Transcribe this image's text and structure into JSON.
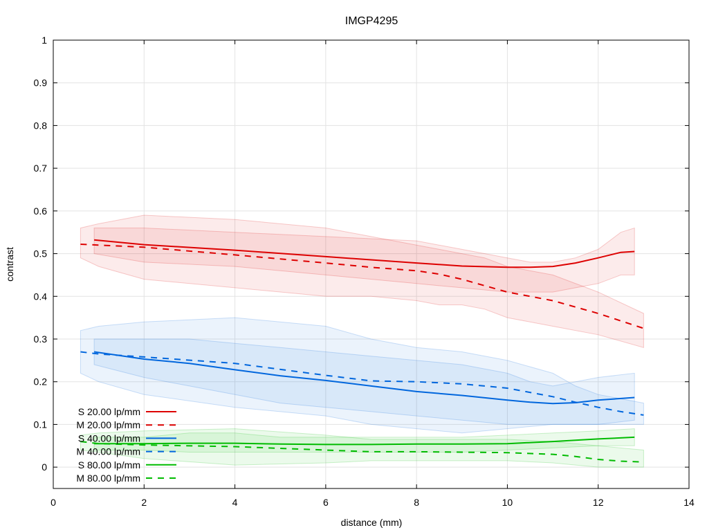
{
  "chart_data": {
    "type": "line",
    "title": "IMGP4295",
    "xlabel": "distance (mm)",
    "ylabel": "contrast",
    "xlim": [
      0,
      14
    ],
    "ylim": [
      -0.05,
      1
    ],
    "x_ticks": [
      "0",
      "2",
      "4",
      "6",
      "8",
      "10",
      "12",
      "14"
    ],
    "y_ticks": [
      "0",
      "0.1",
      "0.2",
      "0.3",
      "0.4",
      "0.5",
      "0.6",
      "0.7",
      "0.8",
      "0.9",
      "1"
    ],
    "grid": true,
    "legend_position": "bottom-left",
    "series": [
      {
        "name": "S 20.00 lp/mm",
        "color": "#dd0000",
        "dash": "solid",
        "x": [
          0.9,
          2,
          4,
          6,
          8,
          9,
          10,
          10.5,
          11,
          11.5,
          12,
          12.5,
          12.8
        ],
        "values": [
          0.532,
          0.521,
          0.508,
          0.493,
          0.478,
          0.471,
          0.468,
          0.468,
          0.47,
          0.478,
          0.49,
          0.503,
          0.505
        ],
        "band_upper": [
          0.56,
          0.56,
          0.55,
          0.54,
          0.53,
          0.51,
          0.49,
          0.48,
          0.48,
          0.49,
          0.51,
          0.55,
          0.56
        ],
        "band_lower": [
          0.5,
          0.48,
          0.47,
          0.45,
          0.43,
          0.42,
          0.41,
          0.41,
          0.41,
          0.42,
          0.43,
          0.45,
          0.45
        ]
      },
      {
        "name": "M 20.00 lp/mm",
        "color": "#dd0000",
        "dash": "dashed",
        "x": [
          0.6,
          1,
          2,
          4,
          6,
          7,
          8,
          8.5,
          9,
          9.5,
          10,
          11,
          12,
          13
        ],
        "values": [
          0.522,
          0.52,
          0.515,
          0.497,
          0.478,
          0.468,
          0.46,
          0.452,
          0.44,
          0.425,
          0.41,
          0.39,
          0.36,
          0.325
        ],
        "band_upper": [
          0.56,
          0.57,
          0.59,
          0.58,
          0.56,
          0.54,
          0.52,
          0.51,
          0.5,
          0.49,
          0.47,
          0.45,
          0.41,
          0.36
        ],
        "band_lower": [
          0.49,
          0.47,
          0.44,
          0.42,
          0.4,
          0.4,
          0.39,
          0.38,
          0.38,
          0.37,
          0.35,
          0.33,
          0.31,
          0.28
        ]
      },
      {
        "name": "S 40.00 lp/mm",
        "color": "#0066dd",
        "dash": "solid",
        "x": [
          0.9,
          2,
          3,
          4,
          5,
          6,
          7,
          8,
          9,
          10,
          10.5,
          11,
          11.5,
          12,
          12.8
        ],
        "values": [
          0.27,
          0.253,
          0.243,
          0.228,
          0.214,
          0.203,
          0.19,
          0.177,
          0.168,
          0.157,
          0.152,
          0.149,
          0.151,
          0.157,
          0.163
        ],
        "band_upper": [
          0.3,
          0.3,
          0.3,
          0.29,
          0.28,
          0.27,
          0.26,
          0.25,
          0.24,
          0.22,
          0.2,
          0.19,
          0.2,
          0.21,
          0.22
        ],
        "band_lower": [
          0.24,
          0.21,
          0.19,
          0.17,
          0.15,
          0.14,
          0.13,
          0.12,
          0.11,
          0.1,
          0.1,
          0.1,
          0.1,
          0.1,
          0.11
        ]
      },
      {
        "name": "M 40.00 lp/mm",
        "color": "#0066dd",
        "dash": "dashed",
        "x": [
          0.6,
          1,
          2,
          4,
          6,
          7,
          8,
          9,
          10,
          11,
          11.5,
          12,
          12.5,
          13
        ],
        "values": [
          0.27,
          0.265,
          0.258,
          0.243,
          0.215,
          0.202,
          0.2,
          0.195,
          0.185,
          0.165,
          0.152,
          0.14,
          0.13,
          0.122
        ],
        "band_upper": [
          0.32,
          0.33,
          0.34,
          0.35,
          0.33,
          0.3,
          0.28,
          0.27,
          0.25,
          0.22,
          0.19,
          0.17,
          0.16,
          0.15
        ],
        "band_lower": [
          0.22,
          0.2,
          0.17,
          0.14,
          0.12,
          0.1,
          0.09,
          0.08,
          0.09,
          0.1,
          0.1,
          0.1,
          0.1,
          0.1
        ]
      },
      {
        "name": "S 80.00 lp/mm",
        "color": "#00bb00",
        "dash": "solid",
        "x": [
          0.9,
          2,
          3,
          4,
          5,
          6,
          7,
          8,
          9,
          10,
          11,
          12,
          12.8
        ],
        "values": [
          0.055,
          0.055,
          0.056,
          0.056,
          0.054,
          0.053,
          0.053,
          0.054,
          0.054,
          0.055,
          0.06,
          0.066,
          0.07
        ],
        "band_upper": [
          0.07,
          0.07,
          0.08,
          0.08,
          0.07,
          0.07,
          0.07,
          0.07,
          0.07,
          0.075,
          0.08,
          0.085,
          0.09
        ],
        "band_lower": [
          0.04,
          0.04,
          0.035,
          0.035,
          0.035,
          0.035,
          0.035,
          0.035,
          0.035,
          0.04,
          0.045,
          0.05,
          0.05
        ]
      },
      {
        "name": "M 80.00 lp/mm",
        "color": "#00bb00",
        "dash": "dashed",
        "x": [
          0.6,
          1,
          2,
          4,
          6,
          7,
          8,
          9,
          10,
          11,
          11.5,
          12,
          12.5,
          13
        ],
        "values": [
          0.06,
          0.055,
          0.052,
          0.048,
          0.04,
          0.036,
          0.036,
          0.035,
          0.034,
          0.03,
          0.025,
          0.018,
          0.014,
          0.012
        ],
        "band_upper": [
          0.075,
          0.08,
          0.085,
          0.09,
          0.075,
          0.065,
          0.065,
          0.065,
          0.065,
          0.06,
          0.055,
          0.05,
          0.045,
          0.04
        ],
        "band_lower": [
          0.04,
          0.035,
          0.02,
          0.005,
          0.01,
          0.015,
          0.015,
          0.015,
          0.015,
          0.01,
          0.005,
          0.0,
          0.0,
          0.0
        ]
      }
    ]
  }
}
